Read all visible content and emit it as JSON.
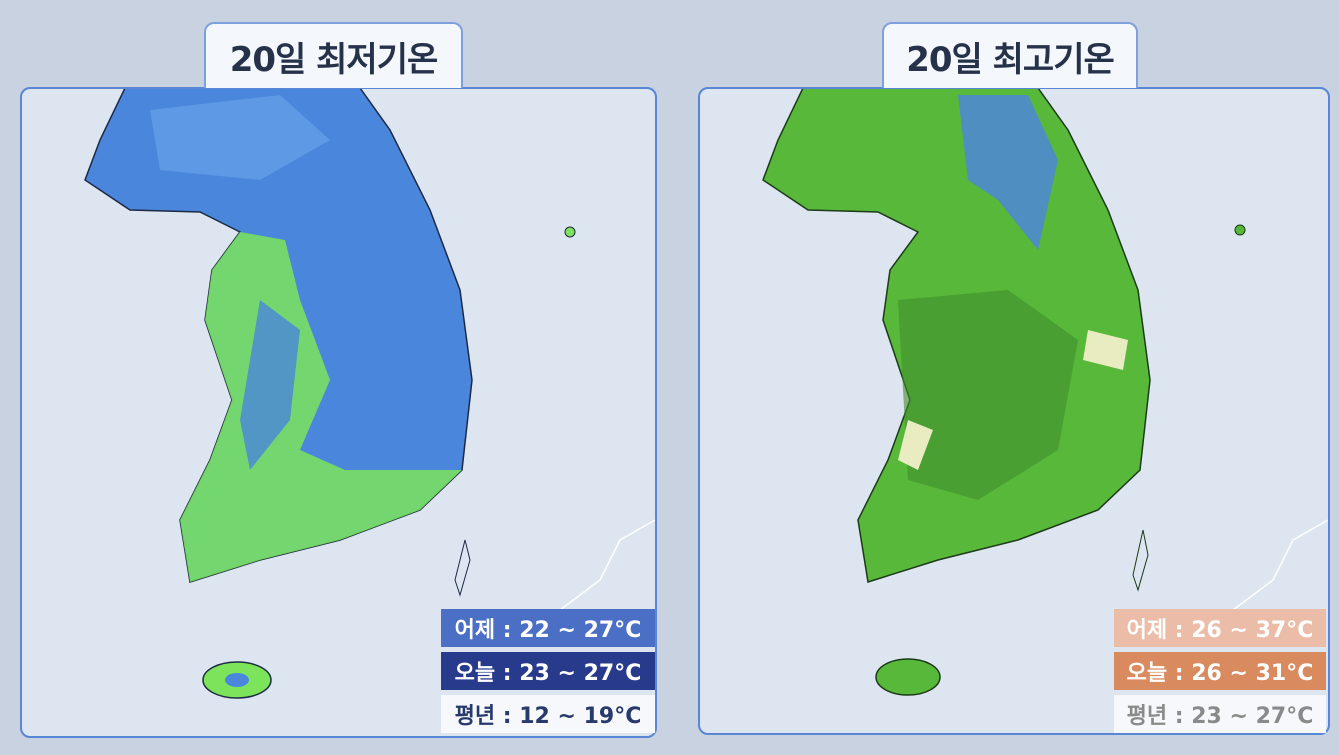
{
  "panels": [
    {
      "title": "20일 최저기온",
      "rows": [
        "어제 : 22 ~ 27°C",
        "오늘 : 23 ~ 27°C",
        "평년 : 12 ~ 19°C"
      ]
    },
    {
      "title": "20일 최고기온",
      "rows": [
        "어제 : 26 ~ 37°C",
        "오늘 : 26 ~ 31°C",
        "평년 : 23 ~ 27°C"
      ]
    }
  ]
}
